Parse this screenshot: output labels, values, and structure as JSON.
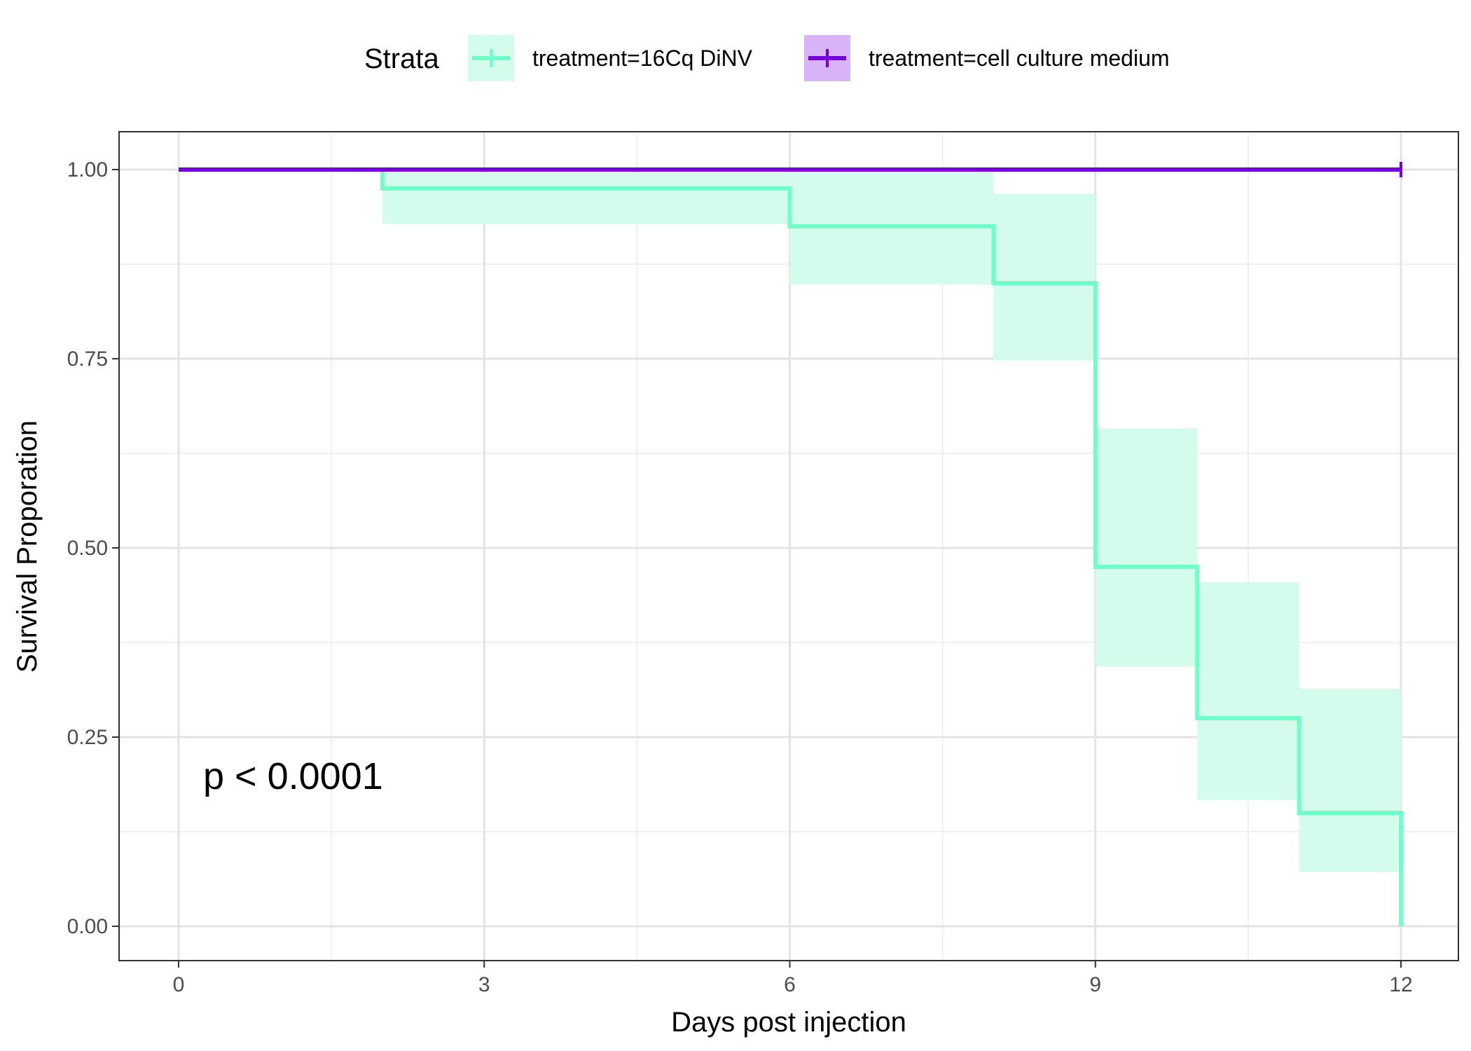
{
  "chart_data": {
    "type": "line",
    "subtype": "kaplan-meier step curve with confidence bands",
    "xlabel": "Days post injection",
    "ylabel": "Survival Proporation",
    "xlim": [
      0,
      12
    ],
    "ylim": [
      0,
      1
    ],
    "x_ticks": [
      0,
      3,
      6,
      9,
      12
    ],
    "y_ticks": [
      0.0,
      0.25,
      0.5,
      0.75,
      1.0
    ],
    "y_tick_labels": [
      "0.00",
      "0.25",
      "0.50",
      "0.75",
      "1.00"
    ],
    "grid": true,
    "legend": {
      "title": "Strata",
      "position": "top"
    },
    "annotation": "p < 0.0001",
    "series": [
      {
        "name": "treatment=16Cq DiNV",
        "color": "#6fffc9",
        "band_color": "#d3fcec",
        "steps": [
          {
            "x": 0,
            "y": 1.0,
            "lower": 1.0,
            "upper": 1.0
          },
          {
            "x": 2,
            "y": 0.975,
            "lower": 0.928,
            "upper": 1.0
          },
          {
            "x": 6,
            "y": 0.925,
            "lower": 0.848,
            "upper": 1.0
          },
          {
            "x": 8,
            "y": 0.85,
            "lower": 0.748,
            "upper": 0.968
          },
          {
            "x": 9,
            "y": 0.475,
            "lower": 0.343,
            "upper": 0.658
          },
          {
            "x": 10,
            "y": 0.275,
            "lower": 0.167,
            "upper": 0.455
          },
          {
            "x": 11,
            "y": 0.15,
            "lower": 0.072,
            "upper": 0.314
          },
          {
            "x": 12,
            "y": 0.0,
            "lower": 0.0,
            "upper": 0.0
          }
        ],
        "end_x": 12
      },
      {
        "name": "treatment=cell culture medium",
        "color": "#7400db",
        "band_color": "#d8b3f5",
        "steps": [
          {
            "x": 0,
            "y": 1.0,
            "lower": 1.0,
            "upper": 1.0
          }
        ],
        "end_x": 12,
        "censor_marks": [
          12
        ]
      }
    ]
  }
}
